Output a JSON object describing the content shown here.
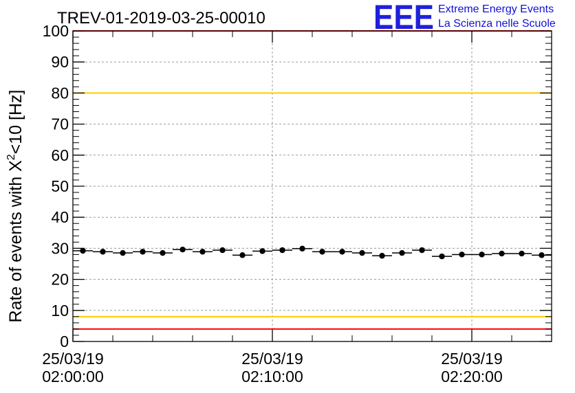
{
  "title": "TREV-01-2019-03-25-00010",
  "logo": {
    "mark": "EEE",
    "line1": "Extreme Energy Events",
    "line2": "La Scienza nelle Scuole",
    "color": "#1f1fdc"
  },
  "chart_data": {
    "type": "scatter",
    "title": "TREV-01-2019-03-25-00010",
    "ylabel_main": "Rate of events with X",
    "ylabel_sup": "2",
    "ylabel_tail": "<10 [Hz]",
    "xlabel": "",
    "ylim": [
      0,
      100
    ],
    "yticks": [
      0,
      10,
      20,
      30,
      40,
      50,
      60,
      70,
      80,
      90,
      100
    ],
    "xlim_minutes": [
      0,
      24
    ],
    "xticks": [
      {
        "minutes": 0,
        "date": "25/03/19",
        "time": "02:00:00"
      },
      {
        "minutes": 10,
        "date": "25/03/19",
        "time": "02:10:00"
      },
      {
        "minutes": 20,
        "date": "25/03/19",
        "time": "02:20:00"
      }
    ],
    "grid": true,
    "bin_width_minutes": 1,
    "x_minutes": [
      0.5,
      1.5,
      2.5,
      3.5,
      4.5,
      5.5,
      6.5,
      7.5,
      8.5,
      9.5,
      10.5,
      11.5,
      12.5,
      13.5,
      14.5,
      15.5,
      16.5,
      17.5,
      18.5,
      19.5,
      20.5,
      21.5,
      22.5,
      23.5
    ],
    "values": [
      29.2,
      28.9,
      28.5,
      28.9,
      28.5,
      29.6,
      28.9,
      29.4,
      27.8,
      29.1,
      29.4,
      29.9,
      28.9,
      28.9,
      28.5,
      27.6,
      28.5,
      29.4,
      27.4,
      28.0,
      28.0,
      28.3,
      28.3,
      27.8
    ],
    "reference_lines": [
      {
        "value": 100,
        "color": "#ff0000"
      },
      {
        "value": 80,
        "color": "#ffcc00"
      },
      {
        "value": 8,
        "color": "#ffcc00"
      },
      {
        "value": 4,
        "color": "#ff0000"
      }
    ]
  }
}
